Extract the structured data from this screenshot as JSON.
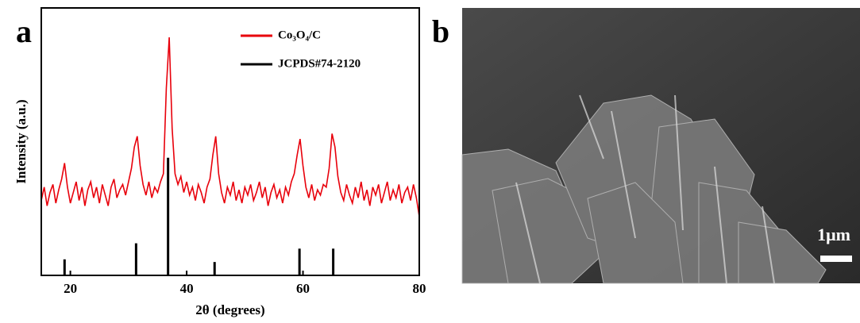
{
  "chart_data": {
    "type": "line",
    "panel_label": "a",
    "xlabel": "2θ (degrees)",
    "ylabel": "Intensity (a.u.)",
    "xlim": [
      15,
      80
    ],
    "xticks": [
      20,
      40,
      60,
      80
    ],
    "ylim": [
      0,
      100
    ],
    "legend": "upper right",
    "series": [
      {
        "name": "Co₃O₄/C",
        "color": "#e8000b",
        "type": "line",
        "x": [
          15,
          15.5,
          16,
          16.5,
          17,
          17.5,
          18,
          18.5,
          19,
          19.5,
          20,
          20.5,
          21,
          21.5,
          22,
          22.5,
          23,
          23.5,
          24,
          24.5,
          25,
          25.5,
          26,
          26.5,
          27,
          27.5,
          28,
          28.5,
          29,
          29.5,
          30,
          30.5,
          31,
          31.5,
          32,
          32.5,
          33,
          33.5,
          34,
          34.5,
          35,
          35.5,
          36,
          36.5,
          37,
          37.5,
          38,
          38.5,
          39,
          39.5,
          40,
          40.5,
          41,
          41.5,
          42,
          42.5,
          43,
          43.5,
          44,
          44.5,
          45,
          45.5,
          46,
          46.5,
          47,
          47.5,
          48,
          48.5,
          49,
          49.5,
          50,
          50.5,
          51,
          51.5,
          52,
          52.5,
          53,
          53.5,
          54,
          54.5,
          55,
          55.5,
          56,
          56.5,
          57,
          57.5,
          58,
          58.5,
          59,
          59.5,
          60,
          60.5,
          61,
          61.5,
          62,
          62.5,
          63,
          63.5,
          64,
          64.5,
          65,
          65.5,
          66,
          66.5,
          67,
          67.5,
          68,
          68.5,
          69,
          69.5,
          70,
          70.5,
          71,
          71.5,
          72,
          72.5,
          73,
          73.5,
          74,
          74.5,
          75,
          75.5,
          76,
          76.5,
          77,
          77.5,
          78,
          78.5,
          79,
          79.5,
          80
        ],
        "values": [
          28,
          33,
          26,
          31,
          34,
          27,
          32,
          36,
          42,
          33,
          27,
          31,
          35,
          28,
          33,
          26,
          32,
          35,
          29,
          33,
          27,
          34,
          30,
          26,
          33,
          36,
          29,
          32,
          34,
          30,
          35,
          40,
          48,
          52,
          41,
          34,
          30,
          35,
          29,
          33,
          31,
          35,
          38,
          70,
          89,
          55,
          38,
          34,
          37,
          31,
          35,
          30,
          33,
          28,
          34,
          31,
          27,
          33,
          36,
          45,
          52,
          38,
          31,
          27,
          33,
          30,
          35,
          28,
          32,
          27,
          33,
          30,
          34,
          28,
          31,
          35,
          29,
          33,
          26,
          31,
          34,
          29,
          32,
          27,
          33,
          30,
          35,
          38,
          45,
          51,
          41,
          33,
          29,
          34,
          28,
          32,
          30,
          34,
          33,
          40,
          53,
          48,
          37,
          31,
          28,
          34,
          30,
          27,
          33,
          29,
          35,
          28,
          32,
          26,
          33,
          30,
          34,
          27,
          31,
          35,
          28,
          32,
          29,
          34,
          27,
          31,
          33,
          28,
          34,
          29,
          22
        ]
      },
      {
        "name": "JCPDS#74-2120",
        "color": "#000000",
        "type": "stick",
        "x": [
          19.0,
          31.3,
          36.8,
          44.8,
          59.4,
          65.2
        ],
        "values": [
          6,
          12,
          44,
          5,
          10,
          10
        ]
      }
    ]
  },
  "image": {
    "panel_label": "b",
    "scale_bar_label": "1μm"
  }
}
